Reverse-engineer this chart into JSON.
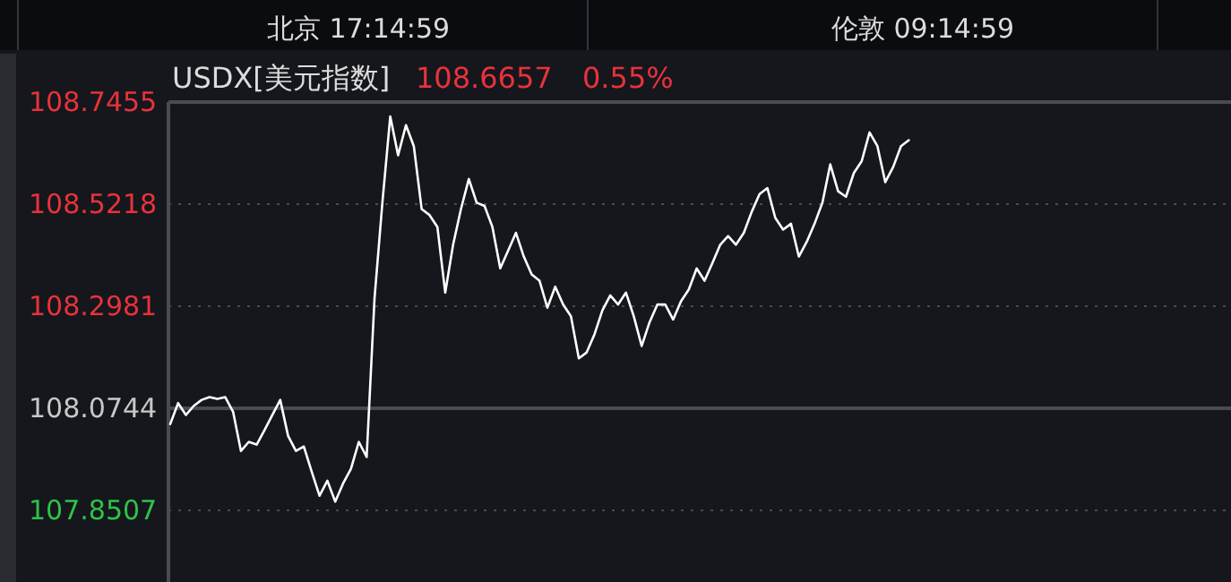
{
  "chart_data": {
    "type": "line",
    "title": "USDX[美元指数]",
    "annotations": [
      "北京 17:14:59",
      "伦敦 09:14:59",
      "108.6657",
      "0.55%"
    ],
    "categories": [
      null,
      null,
      null,
      null,
      null,
      null,
      null,
      null,
      null,
      null,
      null,
      null,
      null,
      null,
      null,
      null,
      null,
      null,
      null,
      null,
      null,
      null,
      null,
      null,
      null,
      null,
      null,
      null,
      null,
      null,
      null,
      null,
      null,
      null,
      null,
      null,
      null,
      null,
      null,
      null,
      null,
      null,
      null,
      null,
      null,
      null,
      null,
      null,
      null,
      null,
      null,
      null,
      null,
      null,
      null,
      null,
      null,
      null,
      null,
      null,
      null,
      null,
      null,
      null,
      null,
      null,
      null,
      null,
      null,
      null,
      null,
      null,
      null,
      null,
      null,
      null,
      null,
      null,
      null,
      null,
      null,
      null,
      null,
      null,
      null,
      null,
      null,
      null,
      null,
      null,
      null,
      null,
      null,
      null,
      null,
      null,
      null,
      null,
      null,
      null,
      null,
      null,
      null,
      null,
      null,
      null,
      null,
      null,
      null,
      null,
      null,
      null,
      null,
      null,
      null,
      null,
      null,
      null,
      null,
      null,
      null,
      null,
      null,
      null,
      null,
      null,
      null,
      null,
      null,
      null,
      null,
      null,
      null,
      null,
      null
    ],
    "series": [
      {
        "color": "#ffffff",
        "values": [
          108.04,
          108.086,
          108.06,
          108.08,
          108.093,
          108.099,
          108.095,
          108.099,
          108.067,
          107.981,
          108.001,
          107.995,
          108.027,
          108.06,
          108.093,
          108.014,
          107.981,
          107.991,
          107.936,
          107.883,
          107.916,
          107.87,
          107.91,
          107.942,
          108.001,
          107.968,
          108.315,
          108.525,
          108.714,
          108.629,
          108.695,
          108.649,
          108.511,
          108.498,
          108.472,
          108.328,
          108.433,
          108.511,
          108.577,
          108.525,
          108.518,
          108.472,
          108.381,
          108.42,
          108.459,
          108.407,
          108.368,
          108.354,
          108.295,
          108.341,
          108.302,
          108.276,
          108.184,
          108.197,
          108.237,
          108.289,
          108.322,
          108.302,
          108.328,
          108.276,
          108.211,
          108.263,
          108.302,
          108.302,
          108.269,
          108.309,
          108.335,
          108.381,
          108.354,
          108.393,
          108.433,
          108.452,
          108.433,
          108.459,
          108.505,
          108.544,
          108.557,
          108.492,
          108.466,
          108.479,
          108.407,
          108.439,
          108.479,
          108.525,
          108.609,
          108.55,
          108.538,
          108.59,
          108.616,
          108.679,
          108.649,
          108.57,
          108.603,
          108.649,
          108.662,
          null,
          null,
          null,
          null,
          null,
          null,
          null,
          null,
          null,
          null,
          null,
          null,
          null,
          null,
          null,
          null,
          null,
          null,
          null,
          null,
          null,
          null,
          null,
          null,
          null,
          null,
          null,
          null,
          null,
          null,
          null,
          null,
          null,
          null,
          null,
          null,
          null,
          null,
          null,
          null
        ]
      }
    ],
    "ylim": [
      107.694,
      108.7455
    ],
    "yticks": [
      {
        "value": 107.8507,
        "label": "107.8507"
      },
      {
        "value": 108.0744,
        "label": "108.0744"
      },
      {
        "value": 108.2981,
        "label": "108.2981"
      },
      {
        "value": 108.5218,
        "label": "108.5218"
      },
      {
        "value": 108.7455,
        "label": "108.7455"
      }
    ],
    "ref_lines": [
      {
        "axis": "y",
        "value": 108.0744,
        "color": "#4a4b50",
        "line_style": "solid"
      }
    ],
    "grid": "y"
  }
}
